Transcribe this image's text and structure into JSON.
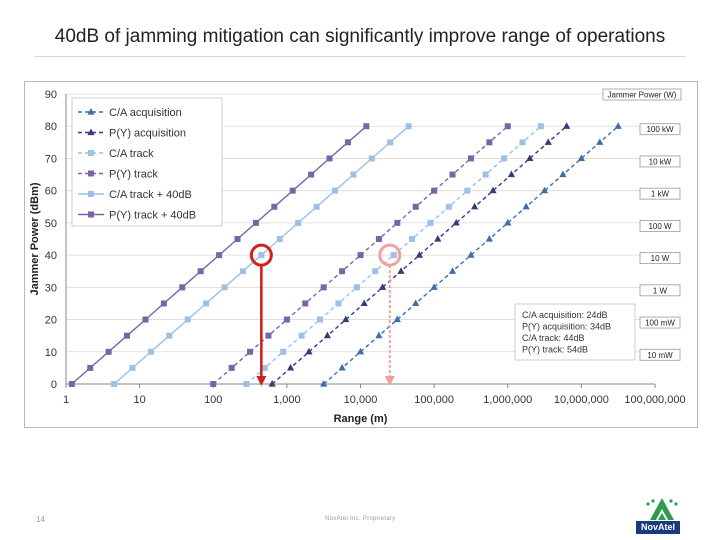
{
  "slide": {
    "title": "40dB of jamming mitigation can significantly improve range of operations",
    "page_number": "14",
    "footer": "NovAtel Inc. Proprietary",
    "logo_text": "NovAtel"
  },
  "colors": {
    "ca": "#3d6ea8",
    "py": "#3a3a78",
    "ca_plus": "#9cc0e6",
    "py_plus": "#7b63a8",
    "circle_red": "#d42020",
    "circle_pink": "#f0a0a0",
    "arrow_red": "#d42020",
    "arrow_pink": "#f0a0a0"
  },
  "chart_data": {
    "type": "line",
    "xscale": "log",
    "xlabel": "Range (m)",
    "ylabel": "Jammer Power (dBm)",
    "xlim": [
      1,
      100000000
    ],
    "ylim": [
      0,
      90
    ],
    "xticks": [
      {
        "v": 1,
        "label": "1"
      },
      {
        "v": 10,
        "label": "10"
      },
      {
        "v": 100,
        "label": "100"
      },
      {
        "v": 1000,
        "label": "1,000"
      },
      {
        "v": 10000,
        "label": "10,000"
      },
      {
        "v": 100000,
        "label": "100,000"
      },
      {
        "v": 1000000,
        "label": "1,000,000"
      },
      {
        "v": 10000000,
        "label": "10,000,000"
      },
      {
        "v": 100000000,
        "label": "100,000,000"
      }
    ],
    "yticks": [
      0,
      10,
      20,
      30,
      40,
      50,
      60,
      70,
      80,
      90
    ],
    "grid": "horizontal",
    "legend_position": "top-left",
    "series": [
      {
        "name": "C/A acquisition",
        "color_key": "ca",
        "marker": "triangle",
        "dashed": true,
        "x_at_0dBm": 3162,
        "ymax": 80
      },
      {
        "name": "P(Y) acquisition",
        "color_key": "py",
        "marker": "triangle",
        "dashed": true,
        "x_at_0dBm": 631,
        "ymax": 80
      },
      {
        "name": "C/A track",
        "color_key": "ca_plus",
        "marker": "square",
        "dashed": true,
        "x_at_0dBm": 282,
        "ymax": 80
      },
      {
        "name": "P(Y) track",
        "color_key": "py_plus",
        "marker": "square",
        "dashed": true,
        "x_at_0dBm": 100,
        "ymax": 80
      },
      {
        "name": "C/A track + 40dB",
        "color_key": "ca_plus",
        "marker": "square",
        "dashed": false,
        "x_at_0dBm": 4.5,
        "ymax": 80
      },
      {
        "name": "P(Y) track + 40dB",
        "color_key": "py_plus",
        "marker": "square",
        "dashed": false,
        "x_at_0dBm": 1.2,
        "ymax": 80
      }
    ],
    "power_scale": {
      "title": "Jammer Power (W)",
      "entries": [
        {
          "dbm": 80,
          "label": "100 kW"
        },
        {
          "dbm": 70,
          "label": "10 kW"
        },
        {
          "dbm": 60,
          "label": "1 kW"
        },
        {
          "dbm": 50,
          "label": "100 W"
        },
        {
          "dbm": 40,
          "label": "10 W"
        },
        {
          "dbm": 30,
          "label": "1 W"
        },
        {
          "dbm": 20,
          "label": "100 mW"
        },
        {
          "dbm": 10,
          "label": "10 mW"
        }
      ]
    },
    "annotation": [
      "C/A acquisition: 24dB",
      "P(Y) acquisition: 34dB",
      "C/A track: 44dB",
      "P(Y) track: 54dB"
    ],
    "highlights": [
      {
        "x": 450,
        "y": 40,
        "color_key": "circle_red"
      },
      {
        "x": 25000,
        "y": 40,
        "color_key": "circle_pink"
      }
    ]
  }
}
